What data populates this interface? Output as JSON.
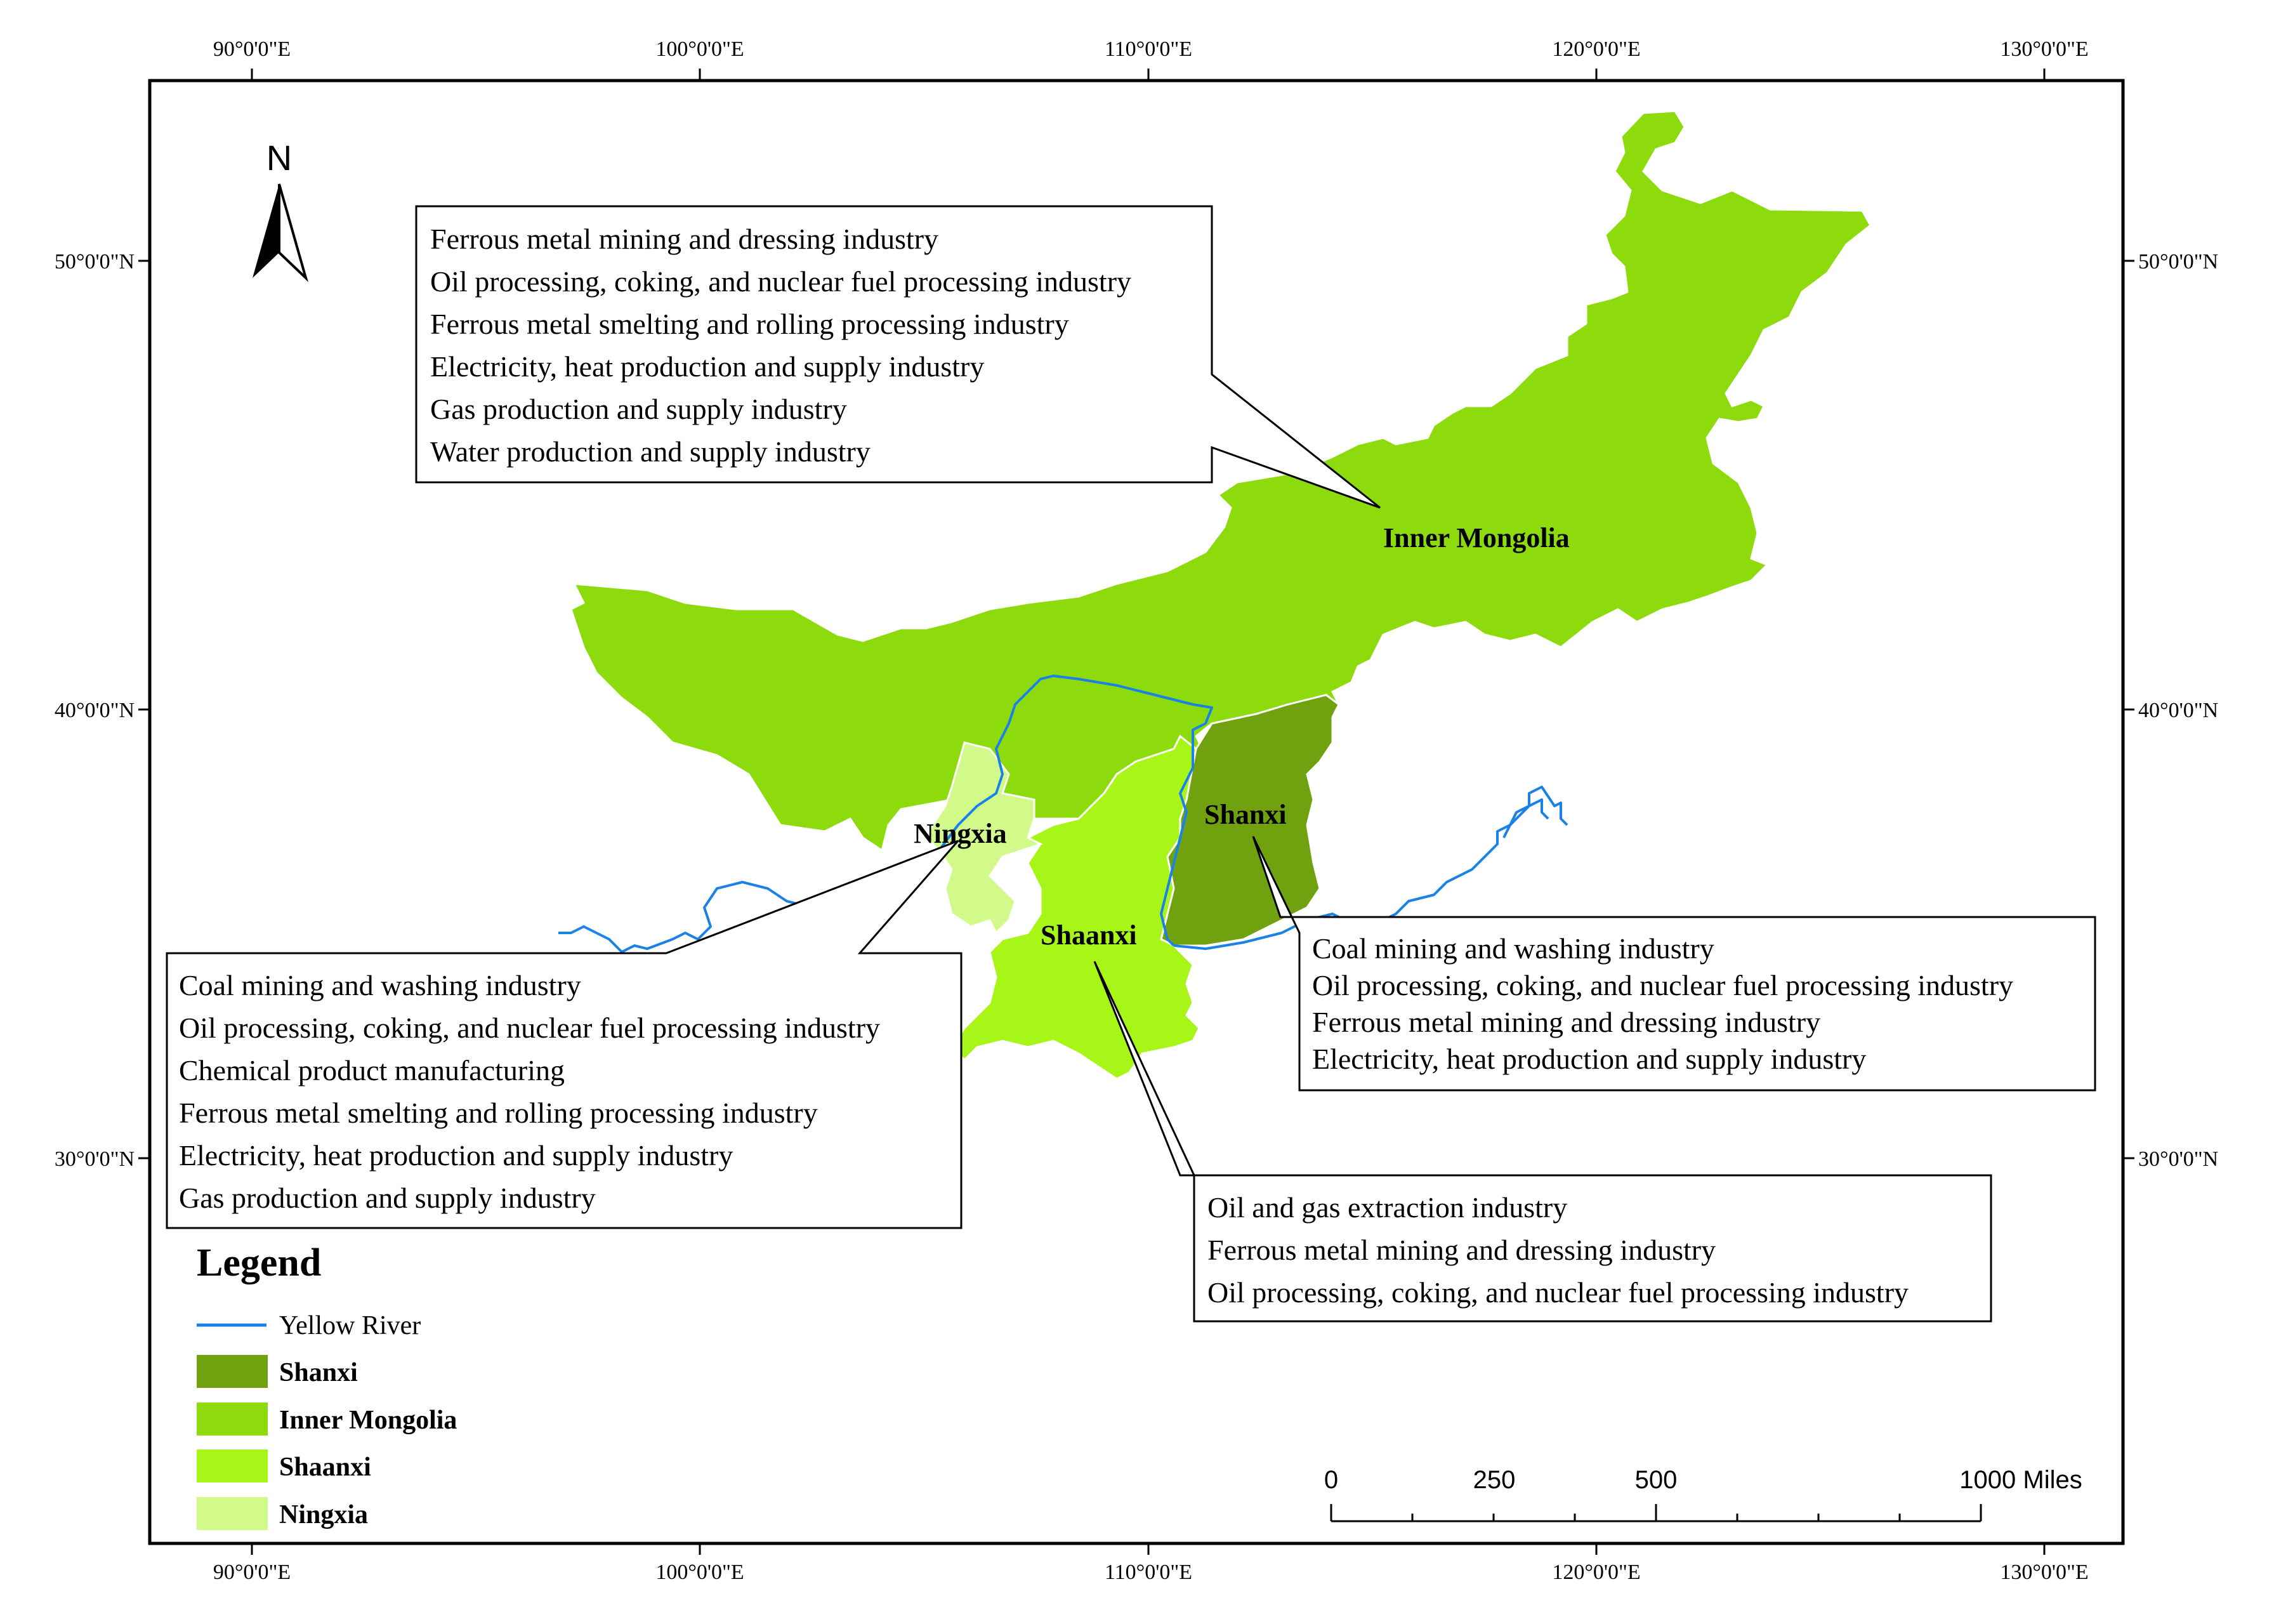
{
  "map": {
    "colors": {
      "shanxi": "#6fa20e",
      "inner_mongolia": "#8ddb0c",
      "shaanxi": "#a8f518",
      "ningxia": "#d2fa8a",
      "river": "#1a82e6",
      "frame": "#000000",
      "region_border": "#ffffff"
    },
    "graticule": {
      "lon_labels": [
        "90°0'0\"E",
        "100°0'0\"E",
        "110°0'0\"E",
        "120°0'0\"E",
        "130°0'0\"E"
      ],
      "lat_labels": [
        "50°0'0\"N",
        "40°0'0\"N",
        "30°0'0\"N"
      ]
    },
    "north_arrow": {
      "label": "N",
      "icon": "north-arrow-icon"
    },
    "regions": {
      "inner_mongolia": "Inner Mongolia",
      "shanxi": "Shanxi",
      "shaanxi": "Shaanxi",
      "ningxia": "Ningxia"
    },
    "callouts": {
      "inner_mongolia": [
        "Ferrous metal mining and dressing industry",
        "Oil processing, coking, and nuclear fuel processing industry",
        "Ferrous metal smelting and rolling processing industry",
        "Electricity, heat production and supply industry",
        "Gas production and supply industry",
        "Water production and supply industry"
      ],
      "ningxia": [
        "Coal mining and washing industry",
        "Oil processing, coking, and nuclear fuel processing industry",
        "Chemical product manufacturing",
        "Ferrous metal smelting and rolling processing industry",
        "Electricity, heat production and supply industry",
        "Gas production and supply industry"
      ],
      "shanxi": [
        "Coal mining and washing industry",
        "Oil processing, coking, and nuclear fuel processing industry",
        "Ferrous metal mining and dressing industry",
        "Electricity, heat production and supply industry"
      ],
      "shaanxi": [
        "Oil and gas extraction industry",
        "Ferrous metal mining and dressing industry",
        "Oil processing, coking, and nuclear fuel processing industry"
      ]
    },
    "legend": {
      "title": "Legend",
      "river_label": "Yellow River",
      "items": [
        "Shanxi",
        "Inner Mongolia",
        "Shaanxi",
        "Ningxia"
      ]
    },
    "scale_bar": {
      "labels": [
        "0",
        "250",
        "500",
        "1000 Miles"
      ],
      "values": [
        0,
        250,
        500,
        1000
      ],
      "unit": "Miles"
    }
  }
}
